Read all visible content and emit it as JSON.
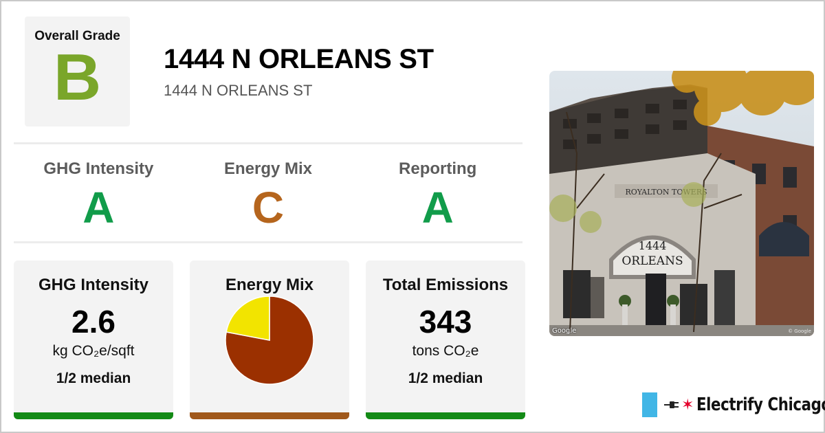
{
  "overall": {
    "label": "Overall Grade",
    "grade": "B",
    "color": "#7aa62a"
  },
  "header": {
    "title": "1444 N ORLEANS ST",
    "subtitle": "1444 N ORLEANS ST"
  },
  "grades": [
    {
      "label": "GHG Intensity",
      "grade": "A",
      "color": "#119c4a"
    },
    {
      "label": "Energy Mix",
      "grade": "C",
      "color": "#b5651d"
    },
    {
      "label": "Reporting",
      "grade": "A",
      "color": "#119c4a"
    }
  ],
  "cards": {
    "ghg": {
      "title": "GHG Intensity",
      "value": "2.6",
      "unit": "kg CO₂e/sqft",
      "median": "1/2 median",
      "bar_color": "#138a16"
    },
    "energy": {
      "title": "Energy Mix",
      "bar_color": "#a0581b"
    },
    "emissions": {
      "title": "Total Emissions",
      "value": "343",
      "unit": "tons CO₂e",
      "median": "1/2 median",
      "bar_color": "#138a16"
    }
  },
  "chart_data": {
    "type": "pie",
    "title": "Energy Mix",
    "series": [
      {
        "value": 0.78,
        "color": "#9b3000"
      },
      {
        "value": 0.22,
        "color": "#f2e400"
      }
    ]
  },
  "photo": {
    "watermark": "Google",
    "watermark_right": "© Google",
    "sign_name": "ROYALTON TOWERS",
    "sign_number": "1444",
    "sign_street": "ORLEANS"
  },
  "brand": {
    "name": "Electrify Chicago",
    "flag_color": "#41b6e6",
    "star_color": "#e4002b"
  }
}
